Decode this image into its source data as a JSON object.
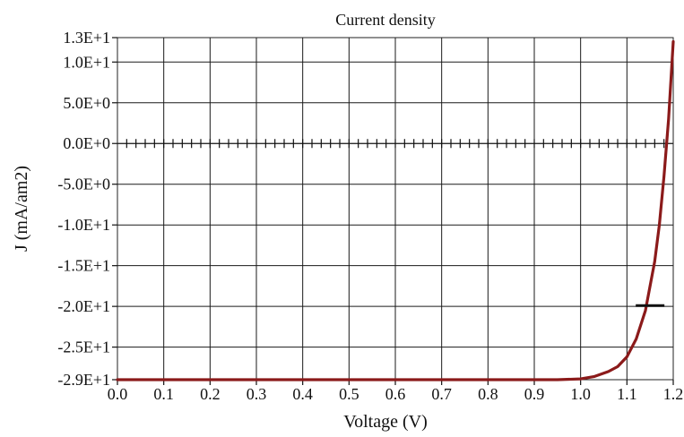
{
  "chart_data": {
    "type": "line",
    "title": "Current density",
    "xlabel": "Voltage (V)",
    "ylabel": "J (mA/am2)",
    "xlim": [
      0.0,
      1.2
    ],
    "ylim": [
      -29,
      13
    ],
    "x_ticks": [
      {
        "value": 0.0,
        "label": "0.0"
      },
      {
        "value": 0.1,
        "label": "0.1"
      },
      {
        "value": 0.2,
        "label": "0.2"
      },
      {
        "value": 0.3,
        "label": "0.3"
      },
      {
        "value": 0.4,
        "label": "0.4"
      },
      {
        "value": 0.5,
        "label": "0.5"
      },
      {
        "value": 0.6,
        "label": "0.6"
      },
      {
        "value": 0.7,
        "label": "0.7"
      },
      {
        "value": 0.8,
        "label": "0.8"
      },
      {
        "value": 0.9,
        "label": "0.9"
      },
      {
        "value": 1.0,
        "label": "1.0"
      },
      {
        "value": 1.1,
        "label": "1.1"
      },
      {
        "value": 1.2,
        "label": "1.2"
      }
    ],
    "y_ticks": [
      {
        "value": 13,
        "label": "1.3E+1"
      },
      {
        "value": 10,
        "label": "1.0E+1"
      },
      {
        "value": 5,
        "label": "5.0E+0"
      },
      {
        "value": 0,
        "label": "0.0E+0"
      },
      {
        "value": -5,
        "label": "-5.0E+0"
      },
      {
        "value": -10,
        "label": "-1.0E+1"
      },
      {
        "value": -15,
        "label": "-1.5E+1"
      },
      {
        "value": -20,
        "label": "-2.0E+1"
      },
      {
        "value": -25,
        "label": "-2.5E+1"
      },
      {
        "value": -29,
        "label": "-2.9E+1"
      }
    ],
    "grid": true,
    "series": [
      {
        "color": "#8b1a1a",
        "x": [
          0.0,
          0.2,
          0.4,
          0.6,
          0.8,
          0.9,
          0.95,
          1.0,
          1.03,
          1.06,
          1.08,
          1.1,
          1.12,
          1.14,
          1.16,
          1.17,
          1.18,
          1.19,
          1.2
        ],
        "y": [
          -29,
          -29,
          -29,
          -29,
          -29,
          -29,
          -29,
          -28.9,
          -28.6,
          -28.0,
          -27.4,
          -26.2,
          -24.0,
          -20.5,
          -14.5,
          -10.0,
          -4.0,
          3.0,
          12.5
        ]
      }
    ],
    "annotations": [
      {
        "type": "marker",
        "x": 1.15,
        "y": -19.9,
        "shape": "dash",
        "color": "#111111"
      }
    ]
  }
}
